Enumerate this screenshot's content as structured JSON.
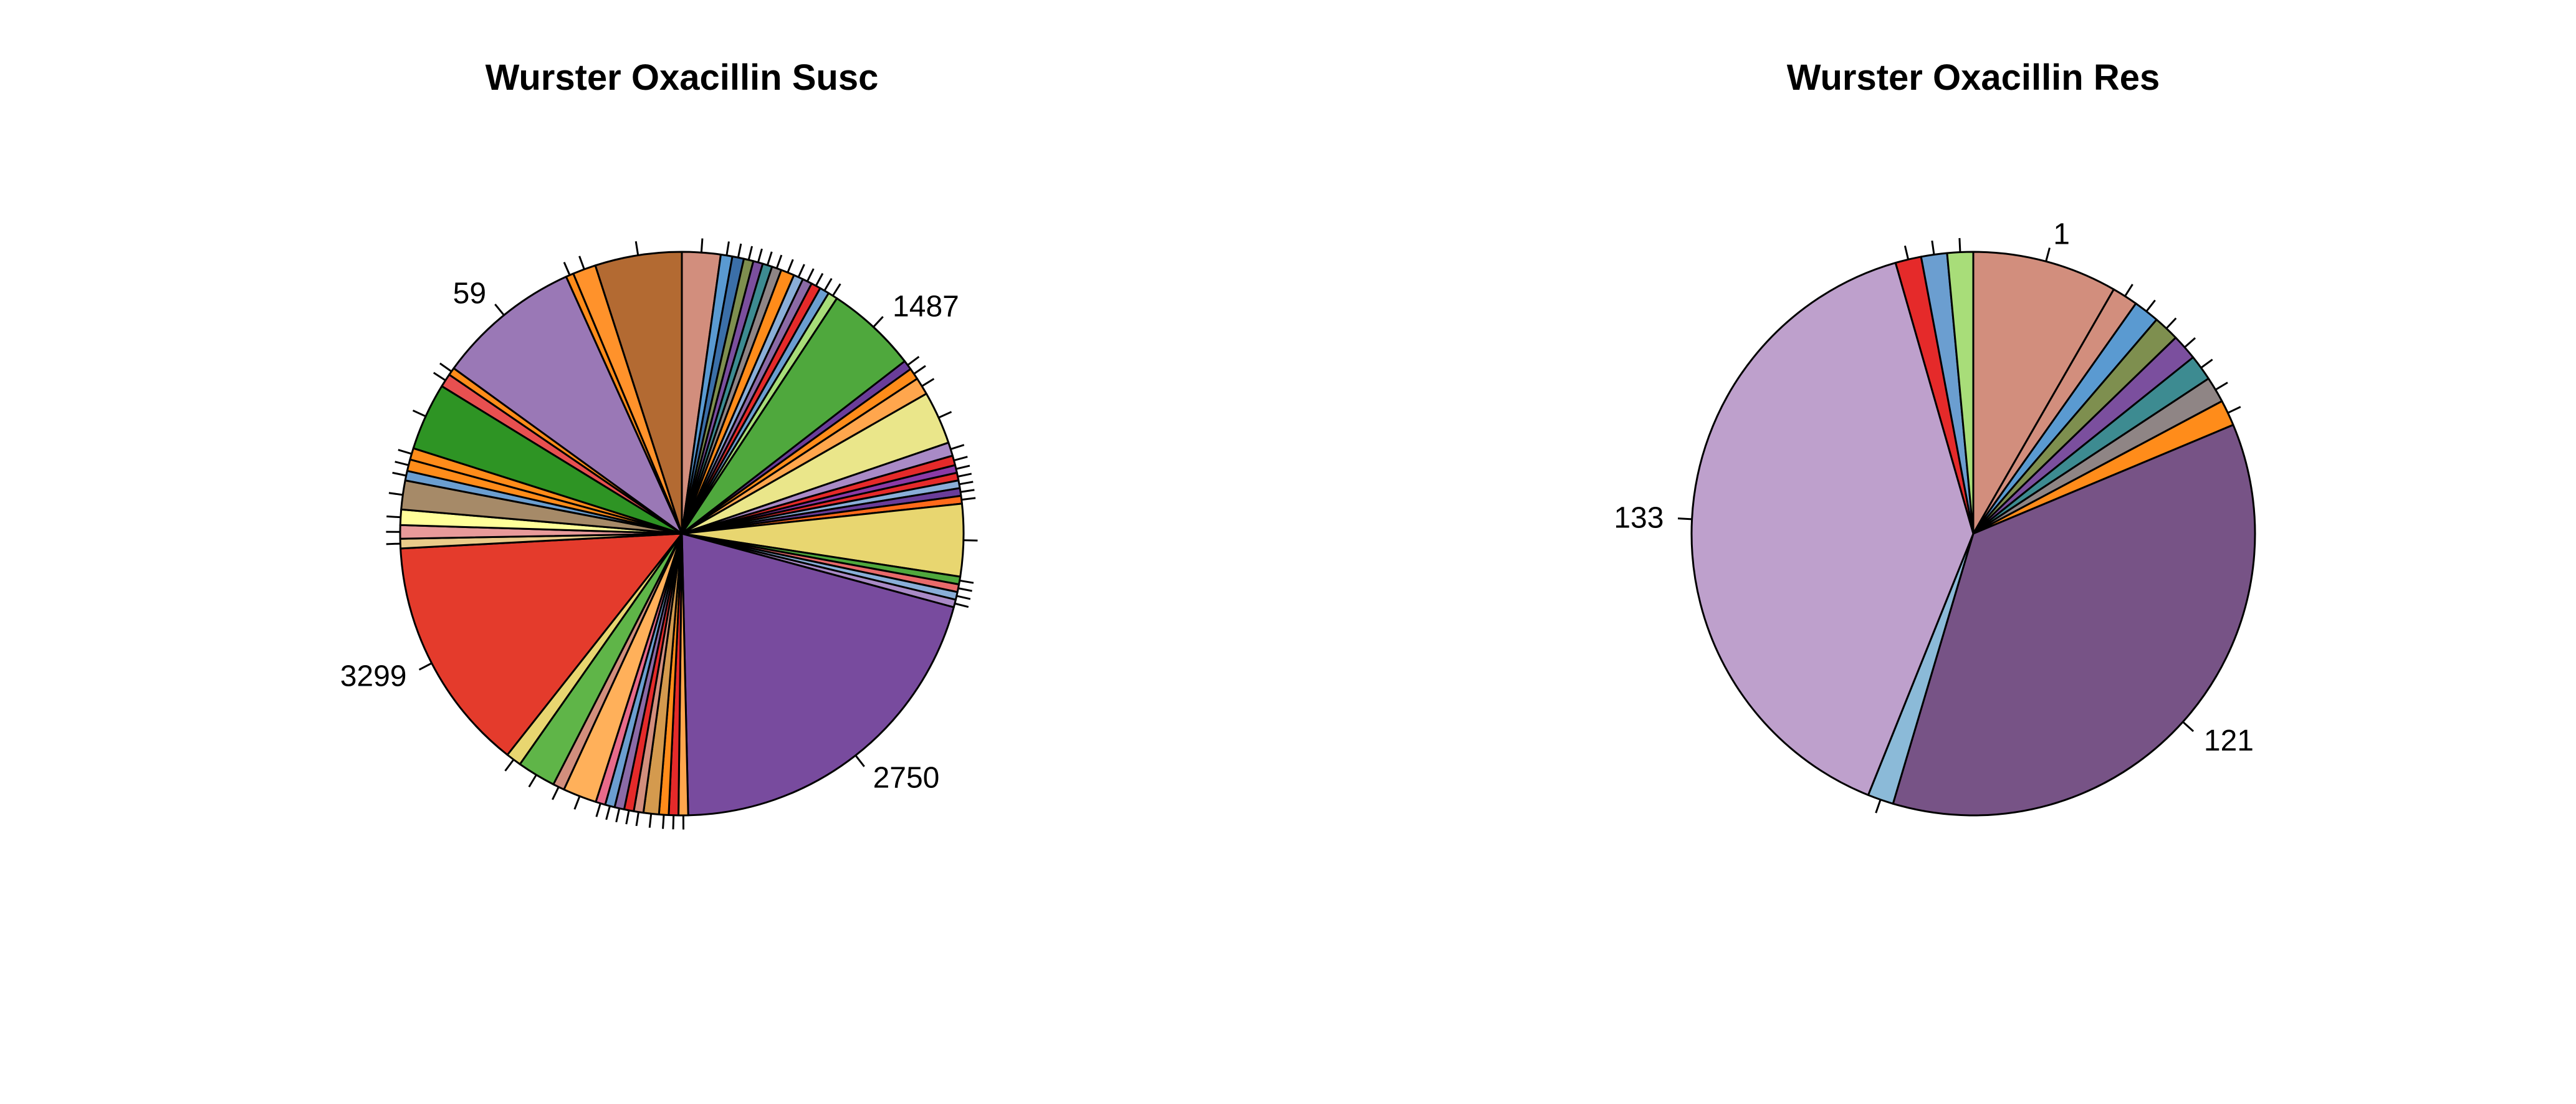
{
  "chart_data": [
    {
      "type": "pie",
      "title": "Wurster Oxacillin Susc",
      "start_angle_deg": 90,
      "direction": "clockwise",
      "slices": [
        {
          "label": "",
          "value": 40,
          "color": "#d28e7d"
        },
        {
          "label": "",
          "value": 12,
          "color": "#5a9ad1"
        },
        {
          "label": "",
          "value": 12,
          "color": "#3b6fa8"
        },
        {
          "label": "",
          "value": 10,
          "color": "#7e8f4f"
        },
        {
          "label": "",
          "value": 10,
          "color": "#7b4f9e"
        },
        {
          "label": "",
          "value": 10,
          "color": "#3d8b91"
        },
        {
          "label": "",
          "value": 10,
          "color": "#8f8585"
        },
        {
          "label": "",
          "value": 14,
          "color": "#ff8c1a"
        },
        {
          "label": "",
          "value": 10,
          "color": "#8aaed8"
        },
        {
          "label": "",
          "value": 10,
          "color": "#8b6aa6"
        },
        {
          "label": "",
          "value": 10,
          "color": "#e52a2a"
        },
        {
          "label": "",
          "value": 10,
          "color": "#6b9ed0"
        },
        {
          "label": "",
          "value": 10,
          "color": "#a8dd79"
        },
        {
          "label": "1487",
          "value": 95,
          "color": "#4fa83d"
        },
        {
          "label": "",
          "value": 10,
          "color": "#6a3d9a"
        },
        {
          "label": "",
          "value": 12,
          "color": "#ff8c1a"
        },
        {
          "label": "",
          "value": 18,
          "color": "#ffa64d"
        },
        {
          "label": "",
          "value": 55,
          "color": "#eae68a"
        },
        {
          "label": "",
          "value": 14,
          "color": "#a98ac6"
        },
        {
          "label": "",
          "value": 10,
          "color": "#e52a2a"
        },
        {
          "label": "",
          "value": 8,
          "color": "#8b3aa6"
        },
        {
          "label": "",
          "value": 8,
          "color": "#e52a2a"
        },
        {
          "label": "",
          "value": 8,
          "color": "#8aaed8"
        },
        {
          "label": "",
          "value": 8,
          "color": "#6a3d9a"
        },
        {
          "label": "",
          "value": 8,
          "color": "#ff6a1a"
        },
        {
          "label": "",
          "value": 75,
          "color": "#e8d670"
        },
        {
          "label": "",
          "value": 8,
          "color": "#4fa83d"
        },
        {
          "label": "",
          "value": 8,
          "color": "#e86a6a"
        },
        {
          "label": "",
          "value": 8,
          "color": "#8aaed8"
        },
        {
          "label": "",
          "value": 8,
          "color": "#a98ac6"
        },
        {
          "label": "2750",
          "value": 370,
          "color": "#784b9e"
        },
        {
          "label": "",
          "value": 10,
          "color": "#ffa64d"
        },
        {
          "label": "",
          "value": 10,
          "color": "#e52a2a"
        },
        {
          "label": "",
          "value": 10,
          "color": "#ff8c1a"
        },
        {
          "label": "",
          "value": 16,
          "color": "#d49a4e"
        },
        {
          "label": "",
          "value": 10,
          "color": "#d28e7d"
        },
        {
          "label": "",
          "value": 10,
          "color": "#e52a2a"
        },
        {
          "label": "",
          "value": 10,
          "color": "#8b6aa6"
        },
        {
          "label": "",
          "value": 10,
          "color": "#6b9ed0"
        },
        {
          "label": "",
          "value": 10,
          "color": "#e86a8a"
        },
        {
          "label": "",
          "value": 35,
          "color": "#ffb05a"
        },
        {
          "label": "",
          "value": 12,
          "color": "#d28e7d"
        },
        {
          "label": "",
          "value": 40,
          "color": "#5fb548"
        },
        {
          "label": "",
          "value": 16,
          "color": "#e8d670"
        },
        {
          "label": "3299",
          "value": 245,
          "color": "#e43b2c"
        },
        {
          "label": "",
          "value": 10,
          "color": "#eacb8a"
        },
        {
          "label": "",
          "value": 14,
          "color": "#e89a9a"
        },
        {
          "label": "",
          "value": 16,
          "color": "#ffff9a"
        },
        {
          "label": "",
          "value": 30,
          "color": "#a68a68"
        },
        {
          "label": "",
          "value": 10,
          "color": "#6b9ed0"
        },
        {
          "label": "",
          "value": 12,
          "color": "#ff8c1a"
        },
        {
          "label": "",
          "value": 12,
          "color": "#ff8c1a"
        },
        {
          "label": "",
          "value": 70,
          "color": "#2e9424"
        },
        {
          "label": "",
          "value": 14,
          "color": "#e85050"
        },
        {
          "label": "",
          "value": 8,
          "color": "#ff8c1a"
        },
        {
          "label": "59",
          "value": 150,
          "color": "#9a78b6"
        },
        {
          "label": "",
          "value": 8,
          "color": "#ff8c1a"
        },
        {
          "label": "",
          "value": 24,
          "color": "#ff922b"
        },
        {
          "label": "",
          "value": 90,
          "color": "#b36a32"
        }
      ]
    },
    {
      "type": "pie",
      "title": "Wurster Oxacillin Res",
      "start_angle_deg": 90,
      "direction": "clockwise",
      "slices": [
        {
          "label": "1",
          "value": 28,
          "color": "#d28e7d"
        },
        {
          "label": "",
          "value": 5,
          "color": "#d28e7d"
        },
        {
          "label": "",
          "value": 5,
          "color": "#5a9ad1"
        },
        {
          "label": "",
          "value": 5,
          "color": "#7e8f4f"
        },
        {
          "label": "",
          "value": 5,
          "color": "#7b4f9e"
        },
        {
          "label": "",
          "value": 5,
          "color": "#3d8b91"
        },
        {
          "label": "",
          "value": 5,
          "color": "#8f8585"
        },
        {
          "label": "",
          "value": 5,
          "color": "#ff8c1a"
        },
        {
          "label": "121",
          "value": 121,
          "color": "#775386"
        },
        {
          "label": "",
          "value": 5,
          "color": "#8bbad8"
        },
        {
          "label": "133",
          "value": 133,
          "color": "#bea0cc"
        },
        {
          "label": "",
          "value": 5,
          "color": "#e52a2a"
        },
        {
          "label": "",
          "value": 5,
          "color": "#6b9ed0"
        },
        {
          "label": "",
          "value": 5,
          "color": "#a8dd79"
        }
      ]
    }
  ]
}
